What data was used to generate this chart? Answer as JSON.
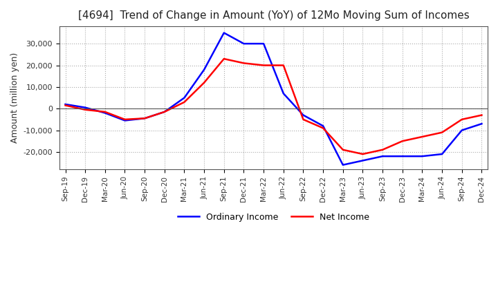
{
  "title": "[4694]  Trend of Change in Amount (YoY) of 12Mo Moving Sum of Incomes",
  "ylabel": "Amount (million yen)",
  "ordinary_income_color": "#0000FF",
  "net_income_color": "#FF0000",
  "background_color": "#FFFFFF",
  "grid_color": "#AAAAAA",
  "x_labels": [
    "Sep-19",
    "Dec-19",
    "Mar-20",
    "Jun-20",
    "Sep-20",
    "Dec-20",
    "Mar-21",
    "Jun-21",
    "Sep-21",
    "Dec-21",
    "Mar-22",
    "Jun-22",
    "Sep-22",
    "Dec-22",
    "Mar-23",
    "Jun-23",
    "Sep-23",
    "Dec-23",
    "Mar-24",
    "Jun-24",
    "Sep-24",
    "Dec-24"
  ],
  "ordinary_income": [
    2000,
    500,
    -2000,
    -5500,
    -4500,
    -1500,
    5000,
    18000,
    35000,
    30000,
    30000,
    7000,
    -3000,
    -8000,
    -26000,
    -24000,
    -22000,
    -22000,
    -22000,
    -21000,
    -10000,
    -7000
  ],
  "net_income": [
    1500,
    -500,
    -1500,
    -5000,
    -4500,
    -1500,
    3000,
    12000,
    23000,
    21000,
    20000,
    20000,
    -5000,
    -9000,
    -19000,
    -21000,
    -19000,
    -15000,
    -13000,
    -11000,
    -5000,
    -3000
  ],
  "ylim": [
    -28000,
    38000
  ],
  "yticks": [
    -20000,
    -10000,
    0,
    10000,
    20000,
    30000
  ]
}
